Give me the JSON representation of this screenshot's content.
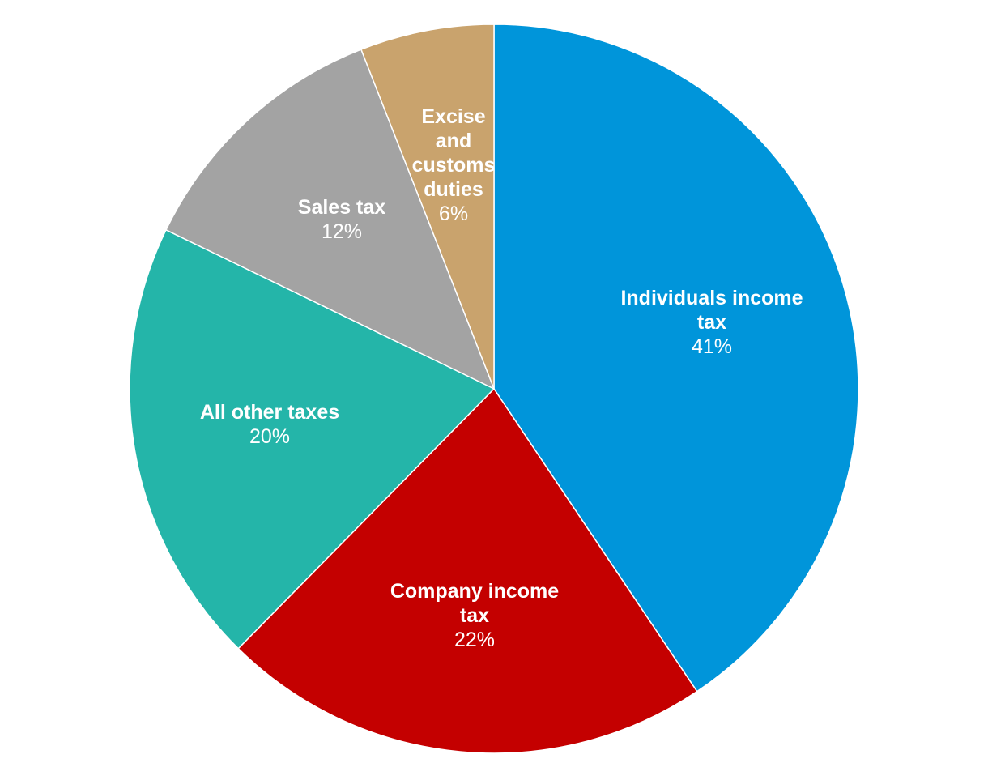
{
  "chart_data": {
    "type": "pie",
    "title": "",
    "slices": [
      {
        "label_lines": [
          "Individuals income",
          "tax"
        ],
        "percent_label": "41%",
        "value": 41,
        "color": "#0095DA"
      },
      {
        "label_lines": [
          "Company income",
          "tax"
        ],
        "percent_label": "22%",
        "value": 22,
        "color": "#C40000"
      },
      {
        "label_lines": [
          "All other taxes"
        ],
        "percent_label": "20%",
        "value": 20,
        "color": "#24B5A9"
      },
      {
        "label_lines": [
          "Sales tax"
        ],
        "percent_label": "12%",
        "value": 12,
        "color": "#A3A3A3"
      },
      {
        "label_lines": [
          "Excise",
          "and",
          "customs",
          "duties"
        ],
        "percent_label": "6%",
        "value": 6,
        "color": "#C9A36D"
      }
    ],
    "start": "12 o'clock",
    "direction": "clockwise",
    "legend": "none (labels inside slices)"
  }
}
